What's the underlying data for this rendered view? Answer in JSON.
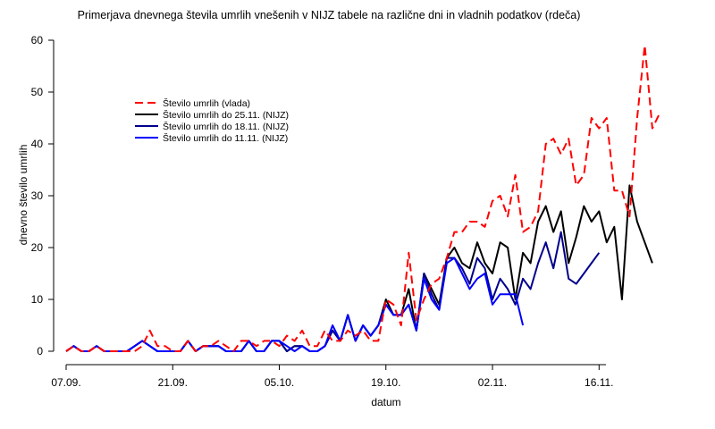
{
  "chart_data": {
    "type": "line",
    "title": "Primerjava dnevnega števila umrlih vnešenih v NIJZ tabele na različne dni in vladnih podatkov (rdeča)",
    "xlabel": "datum",
    "ylabel": "dnevno število umrlih",
    "ylim": [
      0,
      60
    ],
    "yticks": [
      0,
      10,
      20,
      30,
      40,
      50,
      60
    ],
    "xlim": [
      "2020-09-07",
      "2020-11-27"
    ],
    "xticks": [
      {
        "date": "2020-09-07",
        "label": "07.09."
      },
      {
        "date": "2020-09-21",
        "label": "21.09."
      },
      {
        "date": "2020-10-05",
        "label": "05.10."
      },
      {
        "date": "2020-10-19",
        "label": "19.10."
      },
      {
        "date": "2020-11-02",
        "label": "02.11."
      },
      {
        "date": "2020-11-16",
        "label": "16.11."
      }
    ],
    "legend_position": "top-left",
    "series": [
      {
        "name": "Število umrlih (vlada)",
        "color": "#ff0000",
        "dash": "dashed",
        "start_date": "2020-09-07",
        "values": [
          0,
          1,
          0,
          0,
          1,
          0,
          0,
          0,
          0,
          0,
          1,
          4,
          1,
          1,
          0,
          0,
          2,
          0,
          1,
          1,
          2,
          1,
          0,
          2,
          2,
          1,
          2,
          2,
          1,
          3,
          2,
          4,
          1,
          1,
          4,
          2,
          2,
          4,
          3,
          4,
          2,
          2,
          10,
          9,
          5,
          19,
          6,
          10,
          13,
          14,
          18,
          23,
          23,
          25,
          25,
          24,
          29,
          30,
          26,
          34,
          23,
          24,
          27,
          40,
          41,
          38,
          41,
          32,
          34,
          45,
          43,
          45,
          31,
          31,
          26,
          45,
          59,
          43,
          46
        ]
      },
      {
        "name": "Število umrlih do 25.11. (NIJZ)",
        "color": "#000000",
        "dash": "solid",
        "start_date": "2020-09-07",
        "values": [
          0,
          1,
          0,
          0,
          1,
          0,
          0,
          0,
          0,
          1,
          2,
          1,
          0,
          0,
          0,
          0,
          2,
          0,
          1,
          1,
          1,
          0,
          0,
          0,
          2,
          0,
          0,
          2,
          2,
          0,
          1,
          1,
          0,
          0,
          1,
          4,
          2,
          7,
          2,
          5,
          3,
          5,
          10,
          7,
          7,
          12,
          4,
          15,
          12,
          9,
          18,
          20,
          17,
          16,
          21,
          17,
          15,
          21,
          20,
          10,
          19,
          17,
          25,
          28,
          23,
          27,
          17,
          22,
          28,
          25,
          27,
          21,
          24,
          10,
          32,
          25,
          21,
          17
        ]
      },
      {
        "name": "Število umrlih do 18.11. (NIJZ)",
        "color": "#00008b",
        "dash": "solid",
        "start_date": "2020-09-07",
        "values": [
          0,
          1,
          0,
          0,
          1,
          0,
          0,
          0,
          0,
          1,
          2,
          1,
          0,
          0,
          0,
          0,
          2,
          0,
          1,
          1,
          1,
          0,
          0,
          0,
          2,
          0,
          0,
          2,
          2,
          0,
          1,
          1,
          0,
          0,
          1,
          4,
          2,
          7,
          2,
          5,
          3,
          5,
          9,
          7,
          7,
          9,
          4,
          15,
          11,
          8,
          18,
          18,
          16,
          13,
          18,
          16,
          10,
          14,
          12,
          9,
          14,
          12,
          17,
          21,
          16,
          23,
          14,
          13,
          15,
          17,
          19
        ]
      },
      {
        "name": "Število umrlih do 11.11. (NIJZ)",
        "color": "#0000ff",
        "dash": "solid",
        "start_date": "2020-09-07",
        "values": [
          0,
          1,
          0,
          0,
          1,
          0,
          0,
          0,
          0,
          1,
          2,
          1,
          0,
          0,
          0,
          0,
          2,
          0,
          1,
          1,
          1,
          0,
          0,
          0,
          2,
          0,
          0,
          2,
          2,
          1,
          0,
          1,
          0,
          0,
          1,
          5,
          2,
          7,
          2,
          5,
          3,
          5,
          9,
          7,
          7,
          9,
          4,
          14,
          10,
          8,
          17,
          18,
          15,
          12,
          14,
          15,
          9,
          11,
          11,
          11,
          5
        ]
      }
    ]
  }
}
